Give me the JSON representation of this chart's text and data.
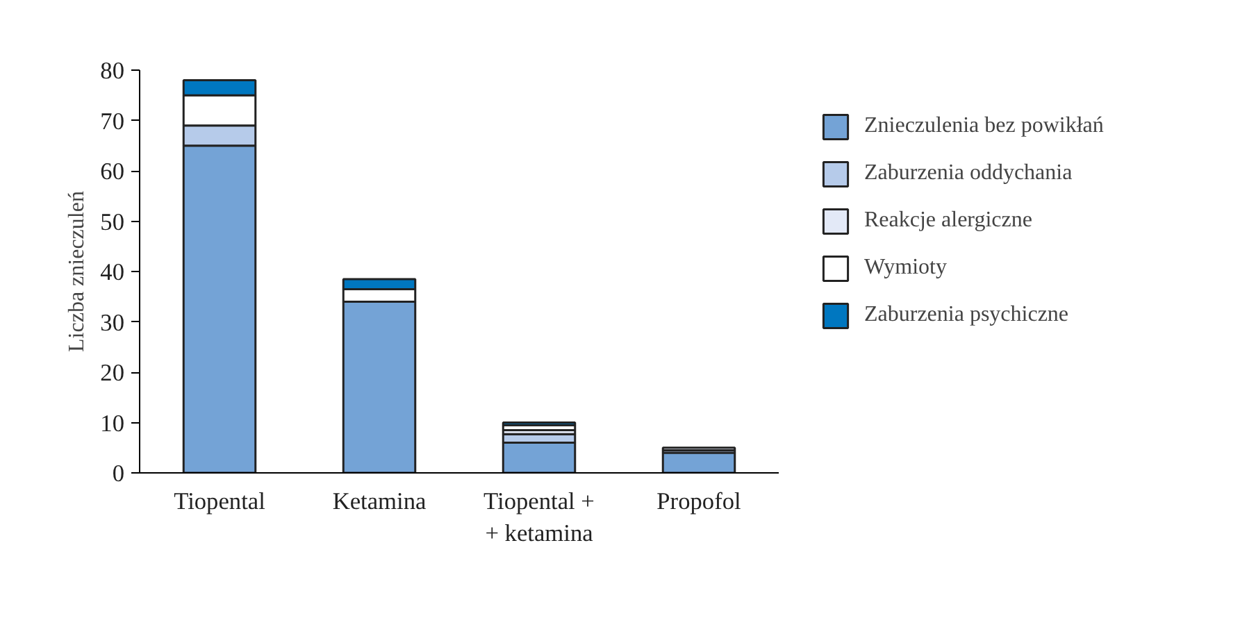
{
  "chart_data": {
    "type": "bar",
    "stacked": true,
    "ylabel": "Liczba znieczuleń",
    "categories": [
      "Tiopental",
      "Ketamina",
      "Tiopental +\n+ ketamina",
      "Propofol"
    ],
    "series": [
      {
        "name": "Znieczulenia bez powikłań",
        "color": "#74a3d6",
        "values": [
          65,
          34,
          6,
          4
        ]
      },
      {
        "name": "Zaburzenia oddychania",
        "color": "#b6cbea",
        "values": [
          4,
          0,
          1.7,
          0.5
        ]
      },
      {
        "name": "Reakcje alergiczne",
        "color": "#e3e9f7",
        "values": [
          0,
          0,
          0.8,
          0.5
        ]
      },
      {
        "name": "Wymioty",
        "color": "#ffffff",
        "values": [
          6,
          2.5,
          1,
          0
        ]
      },
      {
        "name": "Zaburzenia psychiczne",
        "color": "#0077c0",
        "values": [
          3,
          2,
          0.5,
          0
        ]
      }
    ],
    "ylim": [
      0,
      80
    ],
    "yticks": [
      0,
      10,
      20,
      30,
      40,
      50,
      60,
      70,
      80
    ],
    "grid": false,
    "legend": "right"
  }
}
